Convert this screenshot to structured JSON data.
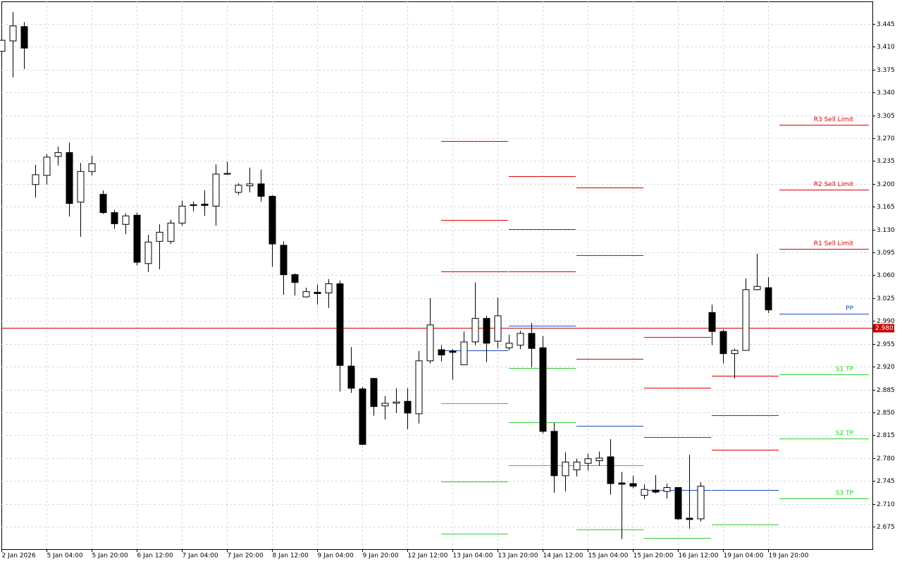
{
  "chart_data": {
    "type": "candlestick",
    "categories": [
      "2 Jan 2026",
      null,
      null,
      null,
      "5 Jan 04:00",
      null,
      null,
      null,
      "5 Jan 20:00",
      null,
      null,
      null,
      "6 Jan 12:00",
      null,
      null,
      null,
      "7 Jan 04:00",
      null,
      null,
      null,
      "7 Jan 20:00",
      null,
      null,
      null,
      "8 Jan 12:00",
      null,
      null,
      null,
      "9 Jan 04:00",
      null,
      null,
      null,
      "9 Jan 20:00",
      null,
      null,
      null,
      "12 Jan 12:00",
      null,
      null,
      null,
      "13 Jan 04:00",
      null,
      null,
      null,
      "13 Jan 20:00",
      null,
      null,
      null,
      "14 Jan 12:00",
      null,
      null,
      null,
      "15 Jan 04:00",
      null,
      null,
      null,
      "15 Jan 20:00",
      null,
      null,
      null,
      "16 Jan 12:00",
      null,
      null,
      null,
      "19 Jan 04:00",
      null,
      null,
      null,
      "19 Jan 20:00"
    ],
    "open": [
      3.403,
      3.419,
      3.441,
      3.199,
      3.213,
      3.242,
      3.248,
      3.172,
      3.219,
      3.184,
      3.156,
      3.138,
      3.152,
      3.078,
      3.112,
      3.112,
      3.14,
      3.167,
      3.169,
      3.166,
      3.216,
      3.187,
      3.197,
      3.2,
      3.181,
      3.106,
      3.061,
      3.027,
      3.034,
      3.033,
      3.047,
      2.921,
      2.886,
      2.902,
      2.86,
      2.864,
      2.867,
      2.848,
      2.929,
      2.946,
      2.944,
      2.923,
      2.958,
      2.994,
      2.959,
      2.949,
      2.953,
      2.971,
      2.949,
      2.821,
      2.753,
      2.762,
      2.772,
      2.776,
      2.782,
      2.742,
      2.741,
      2.723,
      2.731,
      2.729,
      2.735,
      2.688,
      2.687,
      3.003,
      2.974,
      2.94,
      2.945,
      3.038,
      3.041
    ],
    "high": [
      3.43,
      3.463,
      3.448,
      3.229,
      3.246,
      3.257,
      3.263,
      3.232,
      3.243,
      3.19,
      3.16,
      3.155,
      3.156,
      3.122,
      3.138,
      3.145,
      3.174,
      3.173,
      3.19,
      3.23,
      3.234,
      3.201,
      3.225,
      3.222,
      3.183,
      3.112,
      3.063,
      3.041,
      3.046,
      3.054,
      3.052,
      2.95,
      2.889,
      2.903,
      2.875,
      2.887,
      2.887,
      2.944,
      3.025,
      2.953,
      2.947,
      2.974,
      3.049,
      2.998,
      3.026,
      2.969,
      2.975,
      2.987,
      2.967,
      2.834,
      2.789,
      2.779,
      2.787,
      2.79,
      2.809,
      2.759,
      2.753,
      2.74,
      2.754,
      2.741,
      2.735,
      2.785,
      2.743,
      3.015,
      2.977,
      2.948,
      3.055,
      3.093,
      3.057
    ],
    "low": [
      3.395,
      3.363,
      3.376,
      3.179,
      3.199,
      3.228,
      3.15,
      3.119,
      3.213,
      3.154,
      3.131,
      3.123,
      3.075,
      3.065,
      3.069,
      3.108,
      3.136,
      3.158,
      3.151,
      3.136,
      3.214,
      3.183,
      3.187,
      3.173,
      3.073,
      3.03,
      3.029,
      3.026,
      3.015,
      3.01,
      2.882,
      2.88,
      2.8,
      2.845,
      2.839,
      2.849,
      2.824,
      2.833,
      2.925,
      2.928,
      2.9,
      2.923,
      2.953,
      2.927,
      2.948,
      2.945,
      2.947,
      2.919,
      2.818,
      2.727,
      2.729,
      2.752,
      2.761,
      2.768,
      2.724,
      2.656,
      2.734,
      2.717,
      2.726,
      2.718,
      2.685,
      2.672,
      2.683,
      2.953,
      2.925,
      2.902,
      2.945,
      3.037,
      3.002
    ],
    "close": [
      3.42,
      3.442,
      3.408,
      3.214,
      3.241,
      3.248,
      3.17,
      3.219,
      3.231,
      3.156,
      3.139,
      3.151,
      3.08,
      3.111,
      3.126,
      3.14,
      3.166,
      3.168,
      3.167,
      3.215,
      3.215,
      3.198,
      3.2,
      3.181,
      3.108,
      3.061,
      3.049,
      3.035,
      3.032,
      3.047,
      2.922,
      2.887,
      2.801,
      2.859,
      2.864,
      2.866,
      2.849,
      2.929,
      2.984,
      2.938,
      2.942,
      2.958,
      2.994,
      2.956,
      2.998,
      2.956,
      2.971,
      2.948,
      2.821,
      2.753,
      2.774,
      2.774,
      2.779,
      2.78,
      2.741,
      2.74,
      2.737,
      2.732,
      2.728,
      2.735,
      2.687,
      2.686,
      2.737,
      2.974,
      2.94,
      2.945,
      3.038,
      3.043,
      3.007
    ],
    "up_color": "#ffffff",
    "down_color": "#000000",
    "ylim": [
      2.6405,
      3.4795
    ],
    "yticks": [
      3.445,
      {
        "value": 3.41,
        "label": "3.410"
      },
      3.375,
      {
        "value": 3.34,
        "label": "3.340"
      },
      3.305,
      {
        "value": 3.27,
        "label": "3.270"
      },
      3.235,
      {
        "value": 3.2,
        "label": "3.200"
      },
      3.165,
      {
        "value": 3.13,
        "label": "3.130"
      },
      3.095,
      {
        "value": 3.06,
        "label": "3.060"
      },
      3.025,
      {
        "value": 2.99,
        "label": "2.990"
      },
      2.955,
      {
        "value": 2.92,
        "label": "2.920"
      },
      2.885,
      {
        "value": 2.85,
        "label": "2.850"
      },
      2.815,
      {
        "value": 2.78,
        "label": "2.780"
      },
      2.745,
      {
        "value": 2.71,
        "label": "2.710"
      },
      2.675
    ],
    "grid": true,
    "current_price": {
      "value": 2.98,
      "label": "2.980"
    },
    "current_price_color": "#cc0000",
    "level_colors": [
      "#dd0000",
      "#dd0000",
      "#dd0000",
      "#1a4fb8",
      "#33cc33",
      "#33cc33",
      "#33cc33"
    ],
    "levels": [
      {
        "from": 39,
        "to": 45,
        "values": [
          3.266,
          3.145,
          3.066,
          2.945,
          2.864,
          2.744,
          2.664
        ]
      },
      {
        "from": 45,
        "to": 51,
        "values": [
          3.212,
          3.131,
          3.066,
          2.983,
          2.918,
          2.835,
          2.769
        ]
      },
      {
        "from": 51,
        "to": 57,
        "values": [
          3.194,
          3.091,
          2.932,
          2.829,
          2.769,
          2.671,
          null
        ]
      },
      {
        "from": 57,
        "to": 63,
        "values": [
          2.966,
          2.888,
          2.812,
          2.731,
          2.658,
          null,
          null
        ]
      },
      {
        "from": 63,
        "to": 69,
        "values": [
          2.906,
          2.846,
          2.793,
          2.731,
          2.678,
          null,
          null
        ]
      },
      {
        "from": 69,
        "to": 77,
        "values": [
          3.291,
          3.191,
          3.1,
          3.001,
          2.908,
          2.81,
          2.718
        ],
        "labels": [
          "R3 Sell Limit",
          "R2 Sell Limit",
          "R1 Sell Limit",
          "PP",
          "S1 TP",
          "S2 TP",
          "S3 TP"
        ]
      }
    ]
  }
}
